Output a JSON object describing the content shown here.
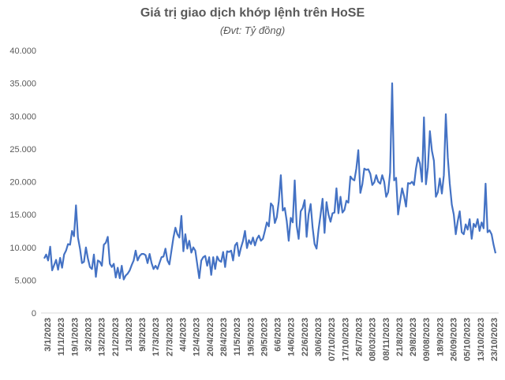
{
  "chart_data": {
    "type": "line",
    "title": "Giá trị giao dịch khớp lệnh trên HoSE",
    "subtitle": "(Đvt: Tỷ đồng)",
    "xlabel": "",
    "ylabel": "",
    "ylim": [
      0,
      40000
    ],
    "y_ticks": [
      0,
      5000,
      10000,
      15000,
      20000,
      25000,
      30000,
      35000,
      40000
    ],
    "y_tick_labels": [
      "0",
      "5.000",
      "10.000",
      "15.000",
      "20.000",
      "25.000",
      "30.000",
      "35.000",
      "40.000"
    ],
    "x_tick_labels": [
      "3/1/2023",
      "11/1/2023",
      "19/1/2023",
      "3/2/2023",
      "13/2/2023",
      "21/2/2023",
      "1/3/2023",
      "9/3/2023",
      "17/3/2023",
      "27/3/2023",
      "4/4/2023",
      "12/4/2023",
      "20/4/2023",
      "28/4/2023",
      "11/5/2023",
      "19/5/2023",
      "29/5/2023",
      "6/6/2023",
      "14/6/2023",
      "22/6/2023",
      "30/6/2023",
      "07/10/2023",
      "17/10/2023",
      "26/7/2023",
      "08/03/2023",
      "08/11/2023",
      "21/8/2023",
      "29/8/2023",
      "09/08/2023",
      "18/9/2023",
      "26/09/2023",
      "05/10/2023",
      "13/10/2023",
      "23/10/2023"
    ],
    "grid": false,
    "legend": "none",
    "line_color": "#4472C4",
    "series": [
      {
        "values": [
          8300,
          8900,
          8000,
          10100,
          6500,
          7300,
          8100,
          6600,
          8400,
          6900,
          8900,
          9500,
          10500,
          10400,
          12500,
          11700,
          16400,
          11500,
          9800,
          7600,
          7800,
          10000,
          8300,
          7000,
          6700,
          8900,
          5500,
          8000,
          7800,
          7200,
          10400,
          10700,
          11600,
          7500,
          7000,
          7500,
          5400,
          6900,
          5300,
          7200,
          5100,
          5700,
          6000,
          6500,
          7300,
          8000,
          9500,
          8000,
          8700,
          9000,
          9000,
          8800,
          7600,
          9000,
          7600,
          6700,
          7200,
          6700,
          7600,
          8500,
          8600,
          9800,
          8000,
          7400,
          9500,
          11500,
          13000,
          12000,
          11500,
          14800,
          9400,
          12000,
          9800,
          11000,
          9200,
          10000,
          9500,
          7400,
          5300,
          8000,
          8500,
          8700,
          7200,
          8500,
          5800,
          8500,
          6700,
          8600,
          8000,
          7800,
          9300,
          7000,
          9400,
          9300,
          9500,
          8000,
          10300,
          10700,
          8700,
          10000,
          11000,
          12500,
          9900,
          11100,
          10500,
          11500,
          10300,
          11300,
          11800,
          11000,
          11300,
          12500,
          13800,
          13200,
          16700,
          16300,
          13700,
          14600,
          17000,
          21000,
          15600,
          16000,
          14000,
          11000,
          14500,
          13800,
          20200,
          13300,
          11300,
          15500,
          16000,
          17200,
          11600,
          15000,
          16600,
          13000,
          10500,
          9800,
          12700,
          15000,
          17400,
          12200,
          16900,
          15000,
          13900,
          15200,
          15300,
          19000,
          15200,
          17700,
          15300,
          15700,
          17100,
          16800,
          20800,
          20400,
          20200,
          22000,
          24800,
          18300,
          19600,
          22000,
          21800,
          21900,
          21200,
          19500,
          19900,
          21000,
          20000,
          19700,
          21000,
          20000,
          17700,
          18400,
          21400,
          35000,
          20200,
          20600,
          15000,
          17000,
          19000,
          17800,
          16200,
          19800,
          19700,
          20000,
          19500,
          22000,
          23700,
          22800,
          20000,
          29800,
          19600,
          22200,
          27700,
          24700,
          23200,
          17700,
          18400,
          20500,
          18200,
          21000,
          30300,
          23700,
          19700,
          16500,
          15000,
          12000,
          14000,
          15500,
          12300,
          12000,
          13500,
          12700,
          14300,
          11300,
          13600,
          13100,
          14300,
          12500,
          13800,
          12900,
          19700,
          12300,
          12600,
          12000,
          10400,
          9100
        ]
      }
    ]
  }
}
